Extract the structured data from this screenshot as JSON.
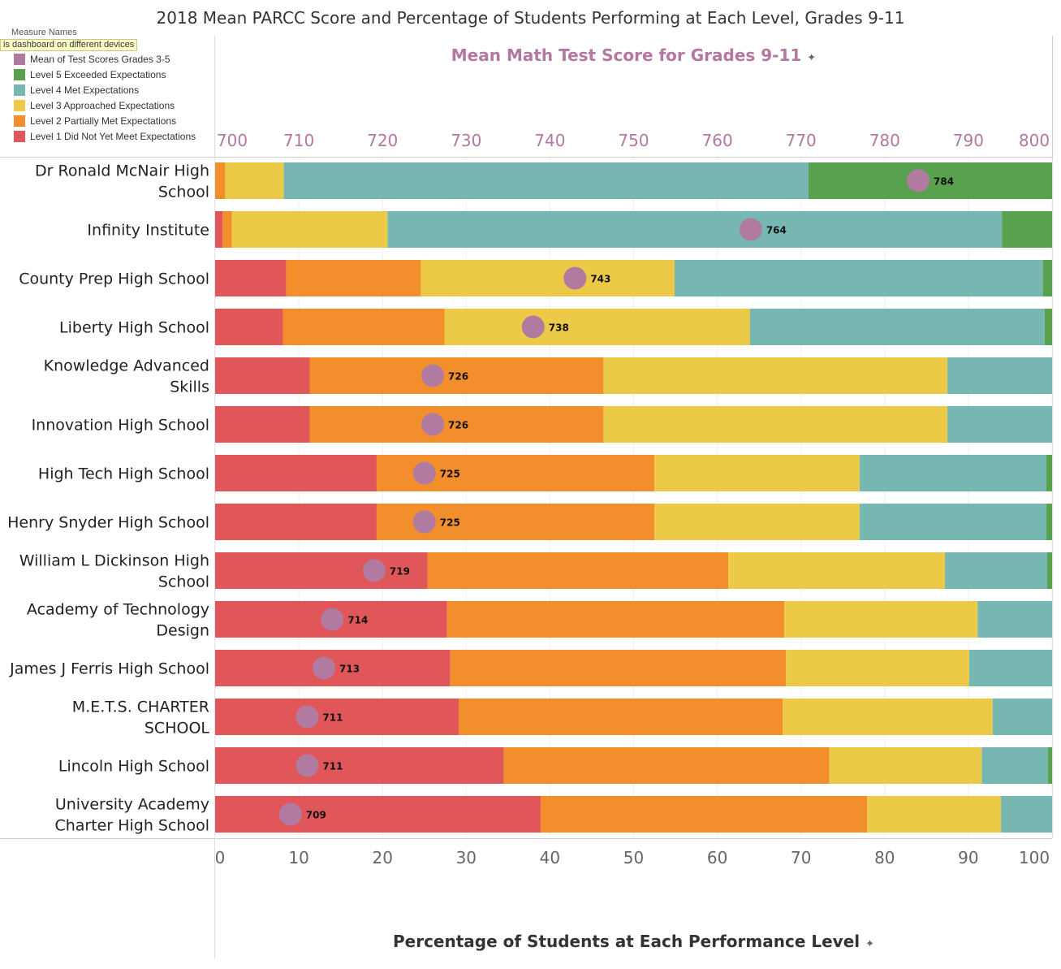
{
  "title": "2018 Mean PARCC Score and Percentage of Students Performing at Each Level, Grades 9-11",
  "legend": {
    "header": "Measure Names",
    "tooltip": "is dashboard on different devices"
  },
  "chart_data": {
    "type": "bar",
    "stacked": true,
    "orientation": "horizontal",
    "top_axis_title": "Mean Math Test Score for Grades 9-11",
    "bottom_axis_title": "Percentage of Students at Each Performance Level",
    "top_axis": {
      "range": [
        700,
        800
      ],
      "ticks": [
        700,
        710,
        720,
        730,
        740,
        750,
        760,
        770,
        780,
        790,
        800
      ]
    },
    "bottom_axis": {
      "range": [
        0,
        100
      ],
      "ticks": [
        0,
        10,
        20,
        30,
        40,
        50,
        60,
        70,
        80,
        90,
        100
      ]
    },
    "legend_position": "top-left",
    "grid": true,
    "categories": [
      "Dr Ronald McNair High School",
      "Infinity Institute",
      "County Prep High School",
      "Liberty High School",
      "Knowledge Advanced Skills",
      "Innovation High School",
      "High Tech High School",
      "Henry Snyder High School",
      "William L Dickinson High School",
      "Academy of Technology Design",
      "James J Ferris High School",
      "M.E.T.S. CHARTER SCHOOL",
      "Lincoln High School",
      "University Academy Charter High School"
    ],
    "series": [
      {
        "name": "Level 1 Did Not Yet Meet Expectations",
        "color": "#e15759",
        "values": [
          0,
          0.9,
          8.5,
          8.1,
          11.3,
          11.3,
          19.3,
          19.3,
          25.4,
          27.7,
          28.1,
          29.1,
          34.5,
          38.9
        ]
      },
      {
        "name": "Level 2 Partially Met Expectations",
        "color": "#f28e2b",
        "values": [
          1.2,
          1.1,
          16.1,
          19.3,
          35.1,
          35.1,
          33.2,
          33.2,
          35.9,
          40.3,
          40.1,
          38.7,
          38.9,
          39.0
        ]
      },
      {
        "name": "Level 3 Approached Expectations",
        "color": "#edc948",
        "values": [
          7.0,
          18.6,
          30.3,
          36.5,
          41.1,
          41.1,
          24.5,
          24.5,
          25.9,
          23.1,
          21.9,
          25.1,
          18.2,
          16.0
        ]
      },
      {
        "name": "Level 4 Met Expectations",
        "color": "#76b7b2",
        "values": [
          62.7,
          73.4,
          44.0,
          35.2,
          12.5,
          12.5,
          22.3,
          22.3,
          12.2,
          8.9,
          9.9,
          7.1,
          7.9,
          6.1
        ]
      },
      {
        "name": "Level 5 Exceeded Expectations",
        "color": "#59a14f",
        "values": [
          29.1,
          6.0,
          1.1,
          0.9,
          0,
          0,
          0.7,
          0.7,
          0.6,
          0,
          0,
          0,
          0.5,
          0
        ]
      }
    ],
    "mean_series": {
      "name": "Mean of Test Scores Grades 3-5",
      "color": "#b07aa1",
      "values": [
        784,
        764,
        743,
        738,
        726,
        726,
        725,
        725,
        719,
        714,
        713,
        711,
        711,
        709
      ]
    }
  }
}
